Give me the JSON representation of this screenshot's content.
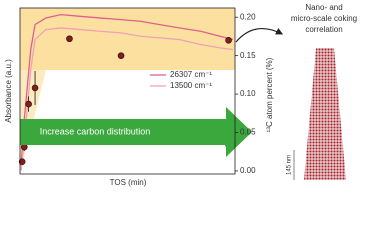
{
  "chart_data": {
    "type": "line",
    "y_label": "Absorbance (a.u.)",
    "x_label": "TOS (min)",
    "y2_label": "¹³C atom percent (%)",
    "annotation_arrow": "Increase carbon distribution",
    "annotation_right": [
      "Nano- and",
      "micro-scale coking",
      "correlation"
    ],
    "scale_label": "145 nm",
    "xlim": [
      0,
      1
    ],
    "ylim": [
      0,
      1
    ],
    "y2lim": [
      -0.004,
      0.212
    ],
    "y2ticks": [
      {
        "value": 0,
        "label": "0.00"
      },
      0.05,
      {
        "value": 0.1,
        "label": "0.10"
      },
      0.15,
      {
        "value": 0.2,
        "label": "0.20"
      }
    ],
    "x": [
      0.005,
      0.02,
      0.05,
      0.07,
      0.12,
      0.19,
      0.28,
      0.37,
      0.47,
      0.56,
      0.65,
      0.74,
      0.84,
      0.93,
      0.99
    ],
    "series": [
      {
        "name": "26307 cm⁻¹",
        "color": "#e0608a",
        "values": [
          0.05,
          0.33,
          0.75,
          0.9,
          0.94,
          0.96,
          0.95,
          0.94,
          0.93,
          0.92,
          0.9,
          0.88,
          0.86,
          0.83,
          0.81
        ]
      },
      {
        "name": "13500 cm⁻¹",
        "color": "#f2a0b6",
        "values": [
          0.02,
          0.2,
          0.63,
          0.81,
          0.87,
          0.88,
          0.87,
          0.86,
          0.85,
          0.83,
          0.82,
          0.81,
          0.78,
          0.76,
          0.75
        ]
      }
    ],
    "points": {
      "axis": "y2",
      "color": "#8b1a1a",
      "x": [
        0.01,
        0.02,
        0.04,
        0.07,
        0.23,
        0.47,
        0.97,
        0.97
      ],
      "values": [
        0.012,
        0.031,
        0.087,
        0.108,
        0.172,
        0.15,
        0.034,
        0.17
      ],
      "errors": [
        0.002,
        0.005,
        0.01,
        0.022,
        0.004,
        0.004,
        0.004,
        0.004
      ]
    }
  }
}
